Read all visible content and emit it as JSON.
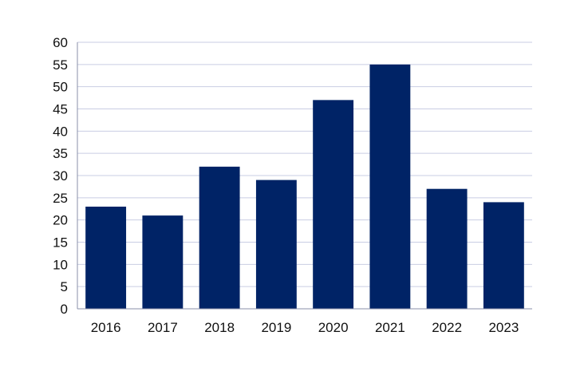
{
  "chart_data": {
    "type": "bar",
    "title": "",
    "xlabel": "",
    "ylabel": "",
    "categories": [
      "2016",
      "2017",
      "2018",
      "2019",
      "2020",
      "2021",
      "2022",
      "2023"
    ],
    "values": [
      23,
      21,
      32,
      29,
      47,
      55,
      27,
      24
    ],
    "ylim": [
      0,
      60
    ],
    "yticks": [
      0,
      5,
      10,
      15,
      20,
      25,
      30,
      35,
      40,
      45,
      50,
      55,
      60
    ],
    "grid": true,
    "legend": "none",
    "bar_color": "#002366",
    "grid_color": "#c9cde3"
  }
}
